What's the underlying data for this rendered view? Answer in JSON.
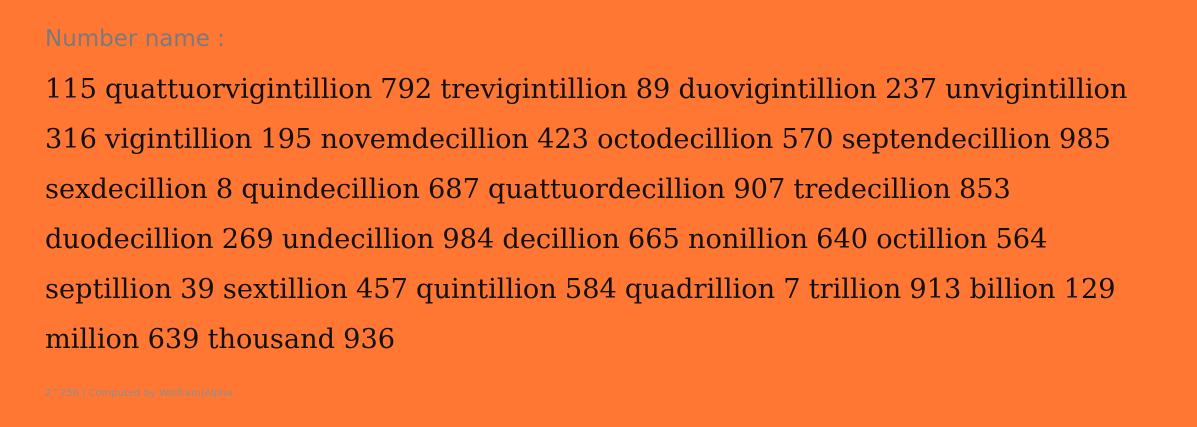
{
  "result": {
    "heading": "Number name :",
    "number_name": "115 quattuorvigintillion 792 trevigintillion 89 duovigintillion 237 unvigintillion 316 vigintillion 195 novemdecillion 423 octodecillion 570 septendecillion 985 sexdecillion 8 quindecillion 687 quattuordecillion 907 tredecillion 853 duodecillion 269 undecillion 984 decillion 665 nonillion 640 octillion 564 septillion 39 sextillion 457 quintillion 584 quadrillion 7 trillion 913 billion 129 million 639 thousand 936",
    "footer": "2^256 | Computed by Wolfram|Alpha"
  },
  "colors": {
    "background": "#FF7733",
    "heading_text": "#7A7A7A",
    "body_text": "#111111",
    "footer_text": "#8E8E8E"
  }
}
